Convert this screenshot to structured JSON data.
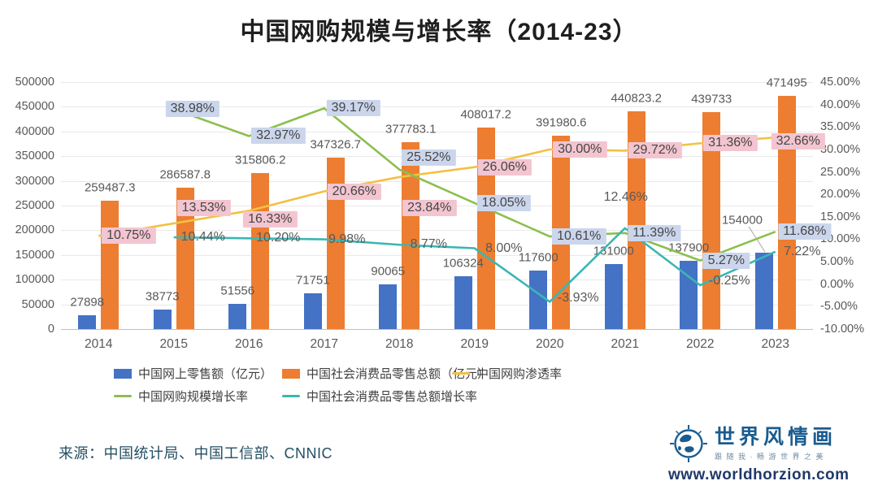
{
  "title": "中国网购规模与增长率（2014-23）",
  "source": "来源：中国统计局、中国工信部、CNNIC",
  "branding": {
    "name": "世界风情画",
    "tagline": "跟随我·畅游世界之美",
    "url": "www.worldhorzion.com"
  },
  "chart_data": {
    "type": "combo-bar-line",
    "categories": [
      "2014",
      "2015",
      "2016",
      "2017",
      "2018",
      "2019",
      "2020",
      "2021",
      "2022",
      "2023"
    ],
    "left_axis": {
      "min": 0,
      "max": 500000,
      "step": 50000,
      "tick_labels": [
        "500000",
        "450000",
        "400000",
        "350000",
        "300000",
        "250000",
        "200000",
        "150000",
        "100000",
        "50000",
        "0"
      ]
    },
    "right_axis": {
      "min": -10,
      "max": 45,
      "step": 5,
      "tick_labels": [
        "45.00%",
        "40.00%",
        "35.00%",
        "30.00%",
        "25.00%",
        "20.00%",
        "15.00%",
        "10.00%",
        "5.00%",
        "0.00%",
        "-5.00%",
        "-10.00%"
      ]
    },
    "grid": true,
    "legend_position": "bottom-left",
    "bar_series": [
      {
        "name": "中国网上零售额（亿元）",
        "color": "#4472C4",
        "values": [
          27898,
          38773,
          51556,
          71751,
          90065,
          106324,
          117600,
          131000,
          137900,
          154000
        ],
        "labels": [
          "27898",
          "38773",
          "51556",
          "71751",
          "90065",
          "106324",
          "117600",
          "131000",
          "137900",
          "154000"
        ]
      },
      {
        "name": "中国社会消费品零售总额（亿元）",
        "color": "#ED7D31",
        "values": [
          259487.3,
          286587.8,
          315806.2,
          347326.7,
          377783.1,
          408017.2,
          391980.6,
          440823.2,
          439733,
          471495
        ],
        "labels": [
          "259487.3",
          "286587.8",
          "315806.2",
          "347326.7",
          "377783.1",
          "408017.2",
          "391980.6",
          "440823.2",
          "439733",
          "471495"
        ]
      }
    ],
    "line_series": [
      {
        "name": "中国网购渗透率",
        "color": "#F2C144",
        "label_style": "pink",
        "start_index": 0,
        "values": [
          10.75,
          13.53,
          16.33,
          20.66,
          23.84,
          26.06,
          30.0,
          29.72,
          31.36,
          32.66
        ],
        "labels": [
          "10.75%",
          "13.53%",
          "16.33%",
          "20.66%",
          "23.84%",
          "26.06%",
          "30.00%",
          "29.72%",
          "31.36%",
          "32.66%"
        ]
      },
      {
        "name": "中国网购规模增长率",
        "color": "#8CBF4F",
        "label_style": "lav",
        "start_index": 1,
        "values": [
          38.98,
          32.97,
          39.17,
          25.52,
          18.05,
          10.61,
          11.39,
          5.27,
          11.68
        ],
        "labels": [
          "38.98%",
          "32.97%",
          "39.17%",
          "25.52%",
          "18.05%",
          "10.61%",
          "11.39%",
          "5.27%",
          "11.68%"
        ]
      },
      {
        "name": "中国社会消费品零售总额增长率",
        "color": "#3BB6B4",
        "label_style": "plain",
        "start_index": 1,
        "values": [
          10.44,
          10.2,
          9.98,
          8.77,
          8.0,
          -3.93,
          12.46,
          -0.25,
          7.22
        ],
        "labels": [
          "10.44%",
          "10.20%",
          "9.98%",
          "8.77%",
          "8.00%",
          "-3.93%",
          "12.46%",
          "-0.25%",
          "7.22%"
        ]
      }
    ]
  }
}
